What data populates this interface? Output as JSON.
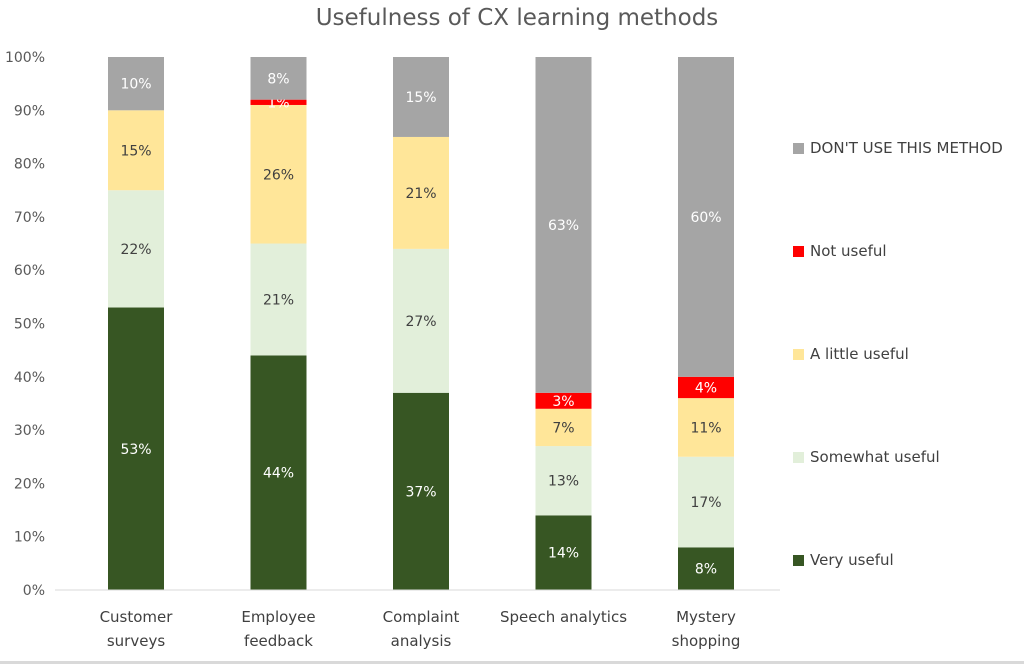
{
  "chart_data": {
    "type": "bar",
    "stacked": true,
    "title": "Usefulness of CX learning methods",
    "xlabel": "",
    "ylabel": "",
    "ylim": [
      0,
      100
    ],
    "y_tick_labels": [
      "0%",
      "10%",
      "20%",
      "30%",
      "40%",
      "50%",
      "60%",
      "70%",
      "80%",
      "90%",
      "100%"
    ],
    "categories": [
      [
        "Customer",
        "surveys"
      ],
      [
        "Employee",
        "feedback"
      ],
      [
        "Complaint",
        "analysis"
      ],
      [
        "Speech analytics"
      ],
      [
        "Mystery",
        "shopping"
      ]
    ],
    "series": [
      {
        "name": "Very useful",
        "color": "#375623",
        "label_color": "#ffffff",
        "values": [
          53,
          44,
          37,
          14,
          8
        ],
        "labels": [
          "53%",
          "44%",
          "37%",
          "14%",
          "8%"
        ]
      },
      {
        "name": "Somewhat useful",
        "color": "#e2efda",
        "label_color": "#404040",
        "values": [
          22,
          21,
          27,
          13,
          17
        ],
        "labels": [
          "22%",
          "21%",
          "27%",
          "13%",
          "17%"
        ]
      },
      {
        "name": "A little useful",
        "color": "#ffe699",
        "label_color": "#404040",
        "values": [
          15,
          26,
          21,
          7,
          11
        ],
        "labels": [
          "15%",
          "26%",
          "21%",
          "7%",
          "11%"
        ]
      },
      {
        "name": "Not useful",
        "color": "#ff0000",
        "label_color": "#ffffff",
        "values": [
          0,
          1,
          0,
          3,
          4
        ],
        "labels": [
          "",
          "1%",
          "",
          "3%",
          "4%"
        ]
      },
      {
        "name": "DON'T USE THIS METHOD",
        "color": "#a5a5a5",
        "label_color": "#ffffff",
        "values": [
          10,
          8,
          15,
          63,
          60
        ],
        "labels": [
          "10%",
          "8%",
          "15%",
          "63%",
          "60%"
        ]
      }
    ],
    "legend_position": "right",
    "legend_order": [
      "DON'T USE THIS METHOD",
      "Not useful",
      "A little useful",
      "Somewhat useful",
      "Very useful"
    ],
    "grid": false
  }
}
